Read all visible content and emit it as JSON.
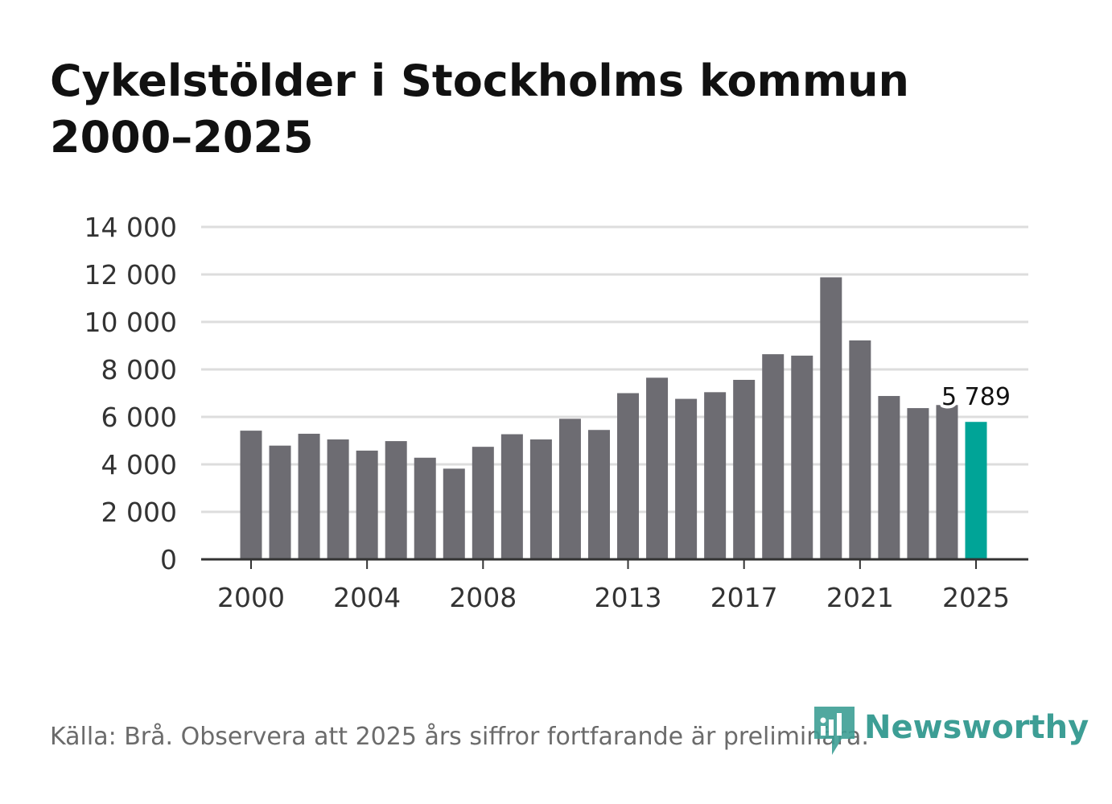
{
  "title": {
    "line1": "Cykelstölder i Stockholms kommun",
    "line2": "2000–2025"
  },
  "chart_data": {
    "type": "bar",
    "title": "Cykelstölder i Stockholms kommun 2000–2025",
    "xlabel": "",
    "ylabel": "",
    "ylim": [
      0,
      14000
    ],
    "grid": true,
    "x": [
      2000,
      2001,
      2002,
      2003,
      2004,
      2005,
      2006,
      2007,
      2008,
      2009,
      2010,
      2011,
      2012,
      2013,
      2014,
      2015,
      2016,
      2017,
      2018,
      2019,
      2020,
      2021,
      2022,
      2023,
      2024,
      2025
    ],
    "values": [
      5420,
      4790,
      5290,
      5050,
      4580,
      4980,
      4280,
      3820,
      4740,
      5270,
      5050,
      5920,
      5450,
      7000,
      7650,
      6760,
      7040,
      7560,
      8640,
      8580,
      11880,
      9220,
      6880,
      6370,
      6500,
      5789
    ],
    "highlight_index": 25,
    "y_ticks": [
      {
        "value": 0,
        "label": "0"
      },
      {
        "value": 2000,
        "label": "2 000"
      },
      {
        "value": 4000,
        "label": "4 000"
      },
      {
        "value": 6000,
        "label": "6 000"
      },
      {
        "value": 8000,
        "label": "8 000"
      },
      {
        "value": 10000,
        "label": "10 000"
      },
      {
        "value": 12000,
        "label": "12 000"
      },
      {
        "value": 14000,
        "label": "14 000"
      }
    ],
    "x_ticks": [
      {
        "value": 2000,
        "label": "2000"
      },
      {
        "value": 2004,
        "label": "2004"
      },
      {
        "value": 2008,
        "label": "2008"
      },
      {
        "value": 2013,
        "label": "2013"
      },
      {
        "value": 2017,
        "label": "2017"
      },
      {
        "value": 2021,
        "label": "2021"
      },
      {
        "value": 2025,
        "label": "2025"
      }
    ],
    "annotation": {
      "x": 2025,
      "label": "5 789"
    },
    "colors": {
      "bar": "#6d6c72",
      "highlight": "#00a497",
      "grid": "#dddddd",
      "axis": "#333333",
      "tick_label": "#333333"
    }
  },
  "footer": {
    "source": "Källa: Brå. Observera att 2025 års siffror fortfarande är preliminära."
  },
  "logo": {
    "icon": "newsworthy-logo-icon",
    "text": "Newsworthy",
    "color": "#3d9e95"
  }
}
